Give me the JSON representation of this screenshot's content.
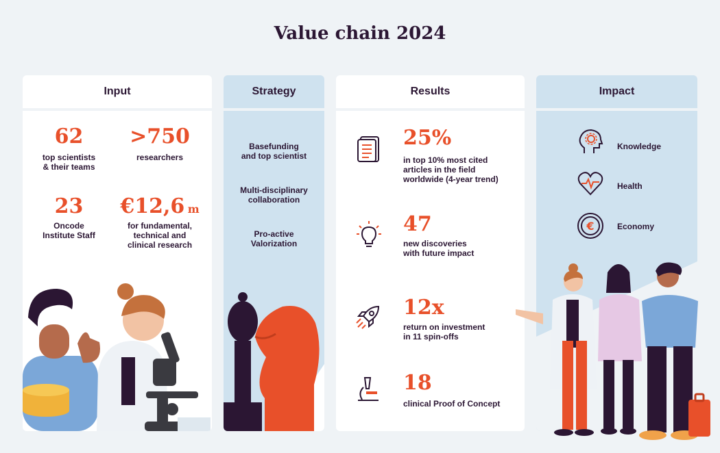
{
  "title": "Value chain 2024",
  "input": {
    "header": "Input",
    "stats": [
      {
        "value": "62",
        "label_line1": "top scientists",
        "label_line2": "& their teams"
      },
      {
        "value": ">750",
        "label_line1": "researchers"
      },
      {
        "value": "23",
        "label_line1": "Oncode",
        "label_line2": "Institute Staff"
      },
      {
        "value": "€12,6",
        "suffix": "m",
        "label_line1": "for fundamental,",
        "label_line2": "technical and",
        "label_line3": "clinical research"
      }
    ]
  },
  "strategy": {
    "header": "Strategy",
    "items": [
      {
        "line1": "Basefunding",
        "line2": "and top scientist"
      },
      {
        "line1": "Multi-disciplinary",
        "line2": "collaboration"
      },
      {
        "line1": "Pro-active",
        "line2": "Valorization"
      }
    ]
  },
  "results": {
    "header": "Results",
    "items": [
      {
        "icon": "document-icon",
        "value": "25%",
        "line1": "in top 10% most cited",
        "line2": "articles in the field",
        "line3": "worldwide (4-year trend)"
      },
      {
        "icon": "lightbulb-icon",
        "value": "47",
        "line1": "new discoveries",
        "line2": "with future impact"
      },
      {
        "icon": "rocket-icon",
        "value": "12x",
        "line1": "return on investment",
        "line2": "in 11 spin-offs"
      },
      {
        "icon": "microscope-icon",
        "value": "18",
        "line1": "clinical Proof of Concept"
      }
    ]
  },
  "impact": {
    "header": "Impact",
    "items": [
      {
        "icon": "brain-gear-icon",
        "label": "Knowledge"
      },
      {
        "icon": "heart-pulse-icon",
        "label": "Health"
      },
      {
        "icon": "euro-coin-icon",
        "label": "Economy"
      }
    ]
  },
  "colors": {
    "accent": "#e8502a",
    "dark": "#2b1633",
    "panel_blue": "#cfe2ef",
    "background": "#eff3f6"
  }
}
